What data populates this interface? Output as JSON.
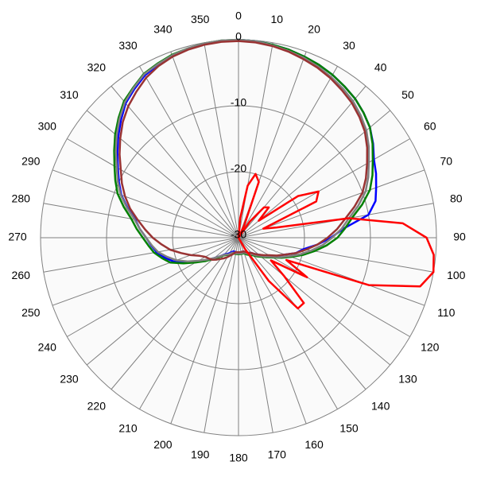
{
  "chart_data": {
    "type": "polar",
    "theta": [
      0,
      5,
      10,
      15,
      20,
      25,
      30,
      35,
      40,
      45,
      50,
      55,
      60,
      65,
      70,
      75,
      80,
      85,
      90,
      95,
      100,
      105,
      110,
      115,
      120,
      125,
      130,
      135,
      140,
      145,
      150,
      155,
      160,
      165,
      170,
      175,
      180,
      185,
      190,
      195,
      200,
      205,
      210,
      215,
      220,
      225,
      230,
      235,
      240,
      245,
      250,
      255,
      260,
      265,
      270,
      275,
      280,
      285,
      290,
      295,
      300,
      305,
      310,
      315,
      320,
      325,
      330,
      335,
      340,
      345,
      350,
      355
    ],
    "rlim": [
      -30,
      0
    ],
    "rticks": [
      -30,
      -20,
      -10,
      0
    ],
    "thetaticks": [
      0,
      10,
      20,
      30,
      40,
      50,
      60,
      70,
      80,
      90,
      100,
      110,
      120,
      130,
      140,
      150,
      160,
      170,
      180,
      190,
      200,
      210,
      220,
      230,
      240,
      250,
      260,
      270,
      280,
      290,
      300,
      310,
      320,
      330,
      340,
      350
    ],
    "grid": true,
    "series": [
      {
        "color": "#0000ff",
        "values": [
          0,
          -0.1,
          -0.3,
          -0.5,
          -0.8,
          -1.1,
          -1.5,
          -2,
          -2.5,
          -3.2,
          -4,
          -5.1,
          -6.3,
          -7,
          -7.8,
          -8.5,
          -10,
          -14,
          -16,
          -18,
          -20,
          -21,
          -22.5,
          -23.5,
          -24.5,
          -25.3,
          -26,
          -26.5,
          -27,
          -27.2,
          -27.4,
          -27.6,
          -27.8,
          -27.8,
          -27.8,
          -27.8,
          -27.8,
          -27.8,
          -27.8,
          -27.8,
          -27.8,
          -27.6,
          -27.3,
          -27,
          -26.7,
          -26,
          -25.2,
          -24,
          -22.8,
          -21.2,
          -19.5,
          -18.4,
          -17.4,
          -16.7,
          -16,
          -15,
          -14.1,
          -12.6,
          -11.1,
          -10,
          -8.9,
          -7.6,
          -6.2,
          -4.8,
          -3.4,
          -2.5,
          -1.6,
          -1.1,
          -0.7,
          -0.4,
          -0.2,
          -0.1
        ]
      },
      {
        "color": "#008000",
        "values": [
          0,
          -0.1,
          -0.3,
          -0.5,
          -0.8,
          -1.1,
          -1.5,
          -2,
          -2.5,
          -3.2,
          -4,
          -5.2,
          -6.5,
          -7.6,
          -8.8,
          -10.6,
          -12.5,
          -13.8,
          -15,
          -16.6,
          -18.3,
          -19.9,
          -21.5,
          -22.8,
          -24,
          -24.8,
          -25.5,
          -26,
          -26.5,
          -26.8,
          -27,
          -27.2,
          -27.5,
          -27.5,
          -27.5,
          -27.5,
          -27.5,
          -27.5,
          -27.5,
          -27.5,
          -27.5,
          -27.3,
          -27,
          -26.8,
          -26.5,
          -25.8,
          -25,
          -23.8,
          -22.5,
          -20.8,
          -19,
          -18,
          -17,
          -16.3,
          -15.5,
          -14.5,
          -13.5,
          -12,
          -10.5,
          -9.4,
          -8.3,
          -7,
          -5.6,
          -4.3,
          -3,
          -2.2,
          -1.3,
          -0.9,
          -0.5,
          -0.3,
          -0.1,
          0
        ]
      },
      {
        "color": "#808080",
        "values": [
          0,
          -0.1,
          -0.4,
          -0.7,
          -1,
          -1.4,
          -1.9,
          -2.4,
          -3,
          -3.8,
          -4.7,
          -5.9,
          -7.2,
          -8.3,
          -9.5,
          -11.2,
          -13,
          -14.3,
          -15.8,
          -17.2,
          -18.8,
          -20.3,
          -21.8,
          -23,
          -24.2,
          -25,
          -25.7,
          -26.2,
          -26.7,
          -27,
          -27.2,
          -27.4,
          -27.6,
          -27.6,
          -27.6,
          -27.6,
          -27.6,
          -27.6,
          -27.6,
          -27.6,
          -27.6,
          -27.4,
          -27.1,
          -26.9,
          -26.6,
          -26,
          -25.2,
          -24.2,
          -23,
          -21.5,
          -20,
          -18.8,
          -17.6,
          -16.8,
          -16,
          -15,
          -14,
          -12.5,
          -11,
          -9.8,
          -8.7,
          -7.3,
          -5.9,
          -4.5,
          -3.2,
          -2.3,
          -1.4,
          -1,
          -0.6,
          -0.3,
          -0.1,
          0
        ]
      },
      {
        "color": "#993333",
        "values": [
          -0.2,
          -0.3,
          -0.5,
          -0.8,
          -1.2,
          -1.6,
          -2.1,
          -2.7,
          -3.3,
          -4.1,
          -5,
          -6.2,
          -7.5,
          -8.7,
          -10,
          -11.8,
          -13.6,
          -15,
          -16.5,
          -18,
          -19.6,
          -21,
          -22.5,
          -23.6,
          -24.7,
          -25.4,
          -26,
          -26.5,
          -27,
          -27.2,
          -27.4,
          -27.6,
          -27.8,
          -27.8,
          -27.8,
          -27.8,
          -27.8,
          -27.8,
          -27.8,
          -27.6,
          -27.3,
          -27,
          -26.6,
          -26.2,
          -25.8,
          -25.3,
          -24.8,
          -24.5,
          -24.2,
          -23.5,
          -22.3,
          -21,
          -19.5,
          -18.3,
          -17,
          -15.8,
          -14.5,
          -13,
          -11.7,
          -10.5,
          -9.4,
          -8,
          -6.6,
          -5.2,
          -4,
          -3,
          -2,
          -1.3,
          -0.8,
          -0.5,
          -0.3,
          -0.2
        ]
      },
      {
        "color": "#ff0000",
        "values": [
          -30,
          -27,
          -22,
          -20,
          -21,
          -28,
          -30,
          -27,
          -24,
          -23.5,
          -26,
          -19,
          -16,
          -17,
          -26,
          -24,
          -13,
          -5,
          -1.5,
          -0.3,
          0,
          -1.5,
          -9,
          -22,
          -18,
          -24,
          -21,
          -16,
          -16,
          -22,
          -28,
          -30,
          -30,
          -30,
          -30,
          -30,
          -30,
          -30,
          -30,
          -30,
          -30,
          -30,
          -30,
          -30,
          -30,
          -30,
          -30,
          -30,
          -30,
          -30,
          -30,
          -30,
          -30,
          -30,
          -30,
          -30,
          -30,
          -30,
          -30,
          -30,
          -30,
          -30,
          -30,
          -30,
          -30,
          -30,
          -30,
          -30,
          -30,
          -30,
          -30,
          -30
        ]
      }
    ]
  }
}
